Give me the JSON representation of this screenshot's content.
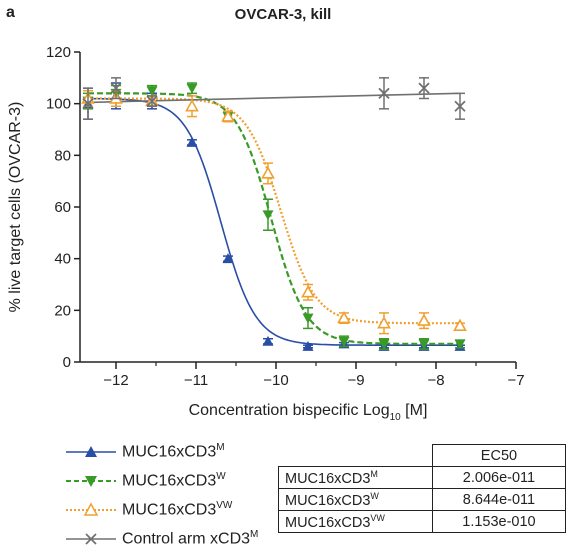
{
  "panel_label": "a",
  "chart_data": {
    "type": "scatter",
    "title": "OVCAR-3, kill",
    "xlabel": "Concentration bispecific Log10 [M]",
    "xlabel_main": "Concentration bispecific Log",
    "xlabel_sub": "10",
    "xlabel_tail": " [M]",
    "ylabel": "% live target cells (OVCAR-3)",
    "xlim": [
      -12.45,
      -7
    ],
    "ylim": [
      0,
      120
    ],
    "xticks": [
      -12,
      -11,
      -10,
      -9,
      -8,
      -7
    ],
    "xtick_labels": [
      "−12",
      "−11",
      "−10",
      "−9",
      "−8",
      "−7"
    ],
    "yticks": [
      0,
      20,
      40,
      60,
      80,
      100,
      120
    ],
    "ytick_labels": [
      "0",
      "20",
      "40",
      "60",
      "80",
      "100",
      "120"
    ],
    "grid": false,
    "legend_position": "bottom-left",
    "series": [
      {
        "name": "MUC16xCD3",
        "name_sup": "M",
        "color": "#2a4ea6",
        "marker": "triangle-up-filled",
        "line_style": "solid",
        "x": [
          -12.35,
          -12.0,
          -11.55,
          -11.05,
          -10.6,
          -10.1,
          -9.6,
          -9.15,
          -8.65,
          -8.15,
          -7.7
        ],
        "y": [
          100,
          103,
          101,
          85,
          40,
          8,
          6,
          7,
          6,
          6,
          6
        ],
        "err": [
          6,
          5,
          3,
          1,
          1,
          1,
          0.5,
          0.5,
          0.5,
          0.5,
          0.5
        ],
        "fit": {
          "top": 102,
          "bottom": 6.5,
          "log_ec50": -10.69,
          "hill": 2.0
        }
      },
      {
        "name": "MUC16xCD3",
        "name_sup": "W",
        "color": "#3a9a28",
        "marker": "triangle-down-filled",
        "line_style": "dashed",
        "x": [
          -12.35,
          -12.0,
          -11.55,
          -11.05,
          -10.6,
          -10.1,
          -9.6,
          -9.15,
          -8.65,
          -8.15,
          -7.7
        ],
        "y": [
          101,
          104,
          105,
          106,
          95,
          57,
          17,
          8,
          7,
          7,
          7
        ],
        "err": [
          3,
          3,
          2,
          2,
          2,
          6,
          4,
          2,
          2,
          2,
          1.5
        ],
        "fit": {
          "top": 104,
          "bottom": 7,
          "log_ec50": -10.06,
          "hill": 2.0
        }
      },
      {
        "name": "MUC16xCD3",
        "name_sup": "VW",
        "color": "#f0a030",
        "marker": "triangle-up-open",
        "line_style": "dotted",
        "x": [
          -12.35,
          -12.0,
          -11.55,
          -11.05,
          -10.6,
          -10.1,
          -9.6,
          -9.15,
          -8.65,
          -8.15,
          -7.7
        ],
        "y": [
          102,
          102,
          101,
          99,
          95,
          73,
          27,
          17,
          15,
          16,
          14
        ],
        "err": [
          3,
          3,
          2,
          4,
          2,
          4,
          3,
          2,
          4,
          3,
          1
        ],
        "fit": {
          "top": 102,
          "bottom": 15,
          "log_ec50": -9.94,
          "hill": 2.0
        }
      },
      {
        "name": "Control arm xCD3",
        "name_sup": "M",
        "color": "#707070",
        "marker": "x",
        "line_style": "solid",
        "x": [
          -12.35,
          -12.0,
          -11.55,
          -8.65,
          -8.15,
          -7.7
        ],
        "y": [
          100,
          106,
          101,
          104,
          106,
          99
        ],
        "err": [
          6,
          4,
          2,
          6,
          4,
          5
        ],
        "fit": {
          "type": "linear",
          "x0": -12.35,
          "y0": 100.5,
          "x1": -7.7,
          "y1": 104
        }
      }
    ]
  },
  "ec50_table": {
    "header": "EC50",
    "rows": [
      {
        "name": "MUC16xCD3",
        "sup": "M",
        "value": "2.006e-011"
      },
      {
        "name": "MUC16xCD3",
        "sup": "W",
        "value": "8.644e-011"
      },
      {
        "name": "MUC16xCD3",
        "sup": "VW",
        "value": "1.153e-010"
      }
    ]
  }
}
